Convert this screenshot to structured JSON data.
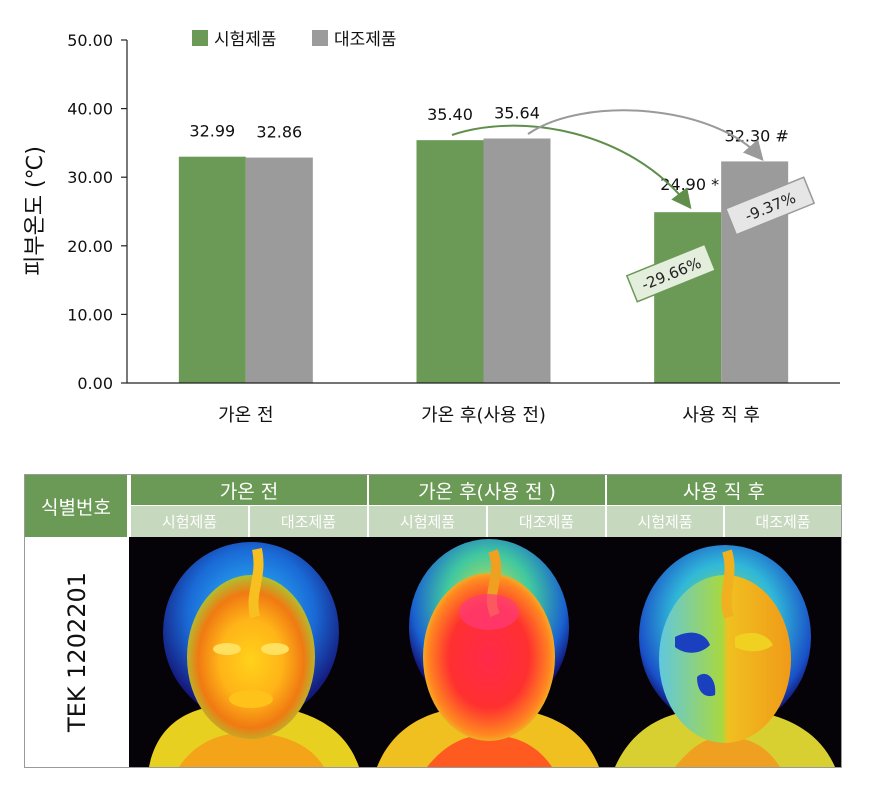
{
  "chart_data": {
    "type": "bar",
    "categories": [
      "가온 전",
      "가온 후(사용 전)",
      "사용 직 후"
    ],
    "series": [
      {
        "name": "시험제품",
        "values": [
          32.99,
          35.4,
          24.9
        ],
        "labels": [
          "32.99",
          "35.40",
          "24.90 *"
        ],
        "color": "#6b9a56"
      },
      {
        "name": "대조제품",
        "values": [
          32.86,
          35.64,
          32.3
        ],
        "labels": [
          "32.86",
          "35.64",
          "32.30 #"
        ],
        "color": "#9b9b9b"
      }
    ],
    "ylabel": "피부온도 (℃)",
    "ylim": [
      0,
      50
    ],
    "yticks": [
      "0.00",
      "10.00",
      "20.00",
      "30.00",
      "40.00",
      "50.00"
    ],
    "legend_position": "top",
    "annotations": [
      {
        "text": "-29.66%",
        "series": "시험제품",
        "color": "#6b9a56"
      },
      {
        "text": "-9.37%",
        "series": "대조제품",
        "color": "#9b9b9b"
      }
    ]
  },
  "table": {
    "id_header": "식별번호",
    "groups": [
      "가온 전",
      "가온 후(사용 전 )",
      "사용 직 후"
    ],
    "subheaders": [
      "시험제품",
      "대조제품"
    ],
    "row_label": "TEK 1202201"
  },
  "colors": {
    "header_green": "#6a9a55",
    "subheader_green": "#c6d8bd"
  }
}
